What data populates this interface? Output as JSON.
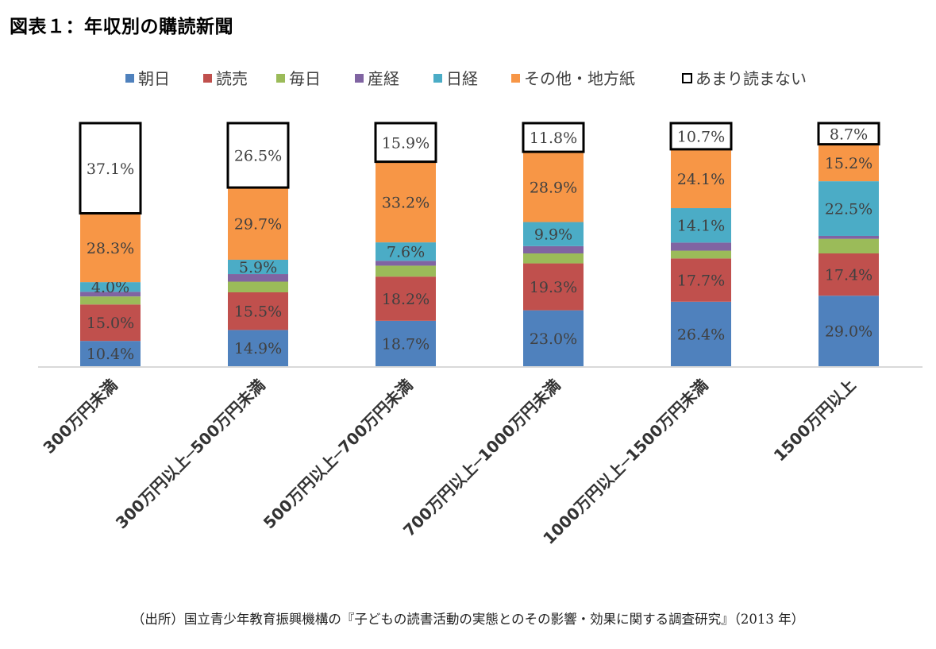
{
  "figure_title": "図表１：年収別の購読新聞",
  "source_note": "（出所）国立青少年教育振興機構の『子どもの読書活動の実態とのその影響・効果に関する調査研究』（2013 年）",
  "chart_data": {
    "type": "bar",
    "stacked": true,
    "unit": "%",
    "legend_position": "top",
    "grid": false,
    "categories": [
      "300万円未満",
      "300万円以上─500万円未満",
      "500万円以上─700万円未満",
      "700万円以上─1000万円未満",
      "1000万円以上─1500万円未満",
      "1500万円以上"
    ],
    "series": [
      {
        "name": "朝日",
        "color": "#4f81bd",
        "values": [
          10.4,
          14.9,
          18.7,
          23.0,
          26.4,
          29.0
        ],
        "labels": [
          "10.4%",
          "14.9%",
          "18.7%",
          "23.0%",
          "26.4%",
          "29.0%"
        ]
      },
      {
        "name": "読売",
        "color": "#c0504d",
        "values": [
          15.0,
          15.5,
          18.2,
          19.3,
          17.7,
          17.4
        ],
        "labels": [
          "15.0%",
          "15.5%",
          "18.2%",
          "19.3%",
          "17.7%",
          "17.4%"
        ]
      },
      {
        "name": "毎日",
        "color": "#9bbb59",
        "values": [
          3.3,
          4.4,
          4.5,
          4.1,
          3.2,
          6.0
        ],
        "labels": [
          null,
          null,
          null,
          null,
          null,
          null
        ]
      },
      {
        "name": "産経",
        "color": "#8064a2",
        "values": [
          1.9,
          3.1,
          2.0,
          3.0,
          3.3,
          1.2
        ],
        "labels": [
          null,
          null,
          null,
          null,
          null,
          null
        ]
      },
      {
        "name": "日経",
        "color": "#4bacc6",
        "values": [
          4.0,
          5.9,
          7.6,
          9.9,
          14.1,
          22.5
        ],
        "labels": [
          "4.0%",
          "5.9%",
          "7.6%",
          "9.9%",
          "14.1%",
          "22.5%"
        ]
      },
      {
        "name": "その他・地方紙",
        "color": "#f79646",
        "values": [
          28.3,
          29.7,
          33.2,
          28.9,
          24.1,
          15.2
        ],
        "labels": [
          "28.3%",
          "29.7%",
          "33.2%",
          "28.9%",
          "24.1%",
          "15.2%"
        ]
      },
      {
        "name": "あまり読まない",
        "color": "#ffffff",
        "outline": "#000000",
        "values": [
          37.1,
          26.5,
          15.9,
          11.8,
          10.7,
          8.7
        ],
        "labels": [
          "37.1%",
          "26.5%",
          "15.9%",
          "11.8%",
          "10.7%",
          "8.7%"
        ]
      }
    ],
    "ylim": [
      0,
      100
    ],
    "xlabel": "",
    "ylabel": ""
  }
}
